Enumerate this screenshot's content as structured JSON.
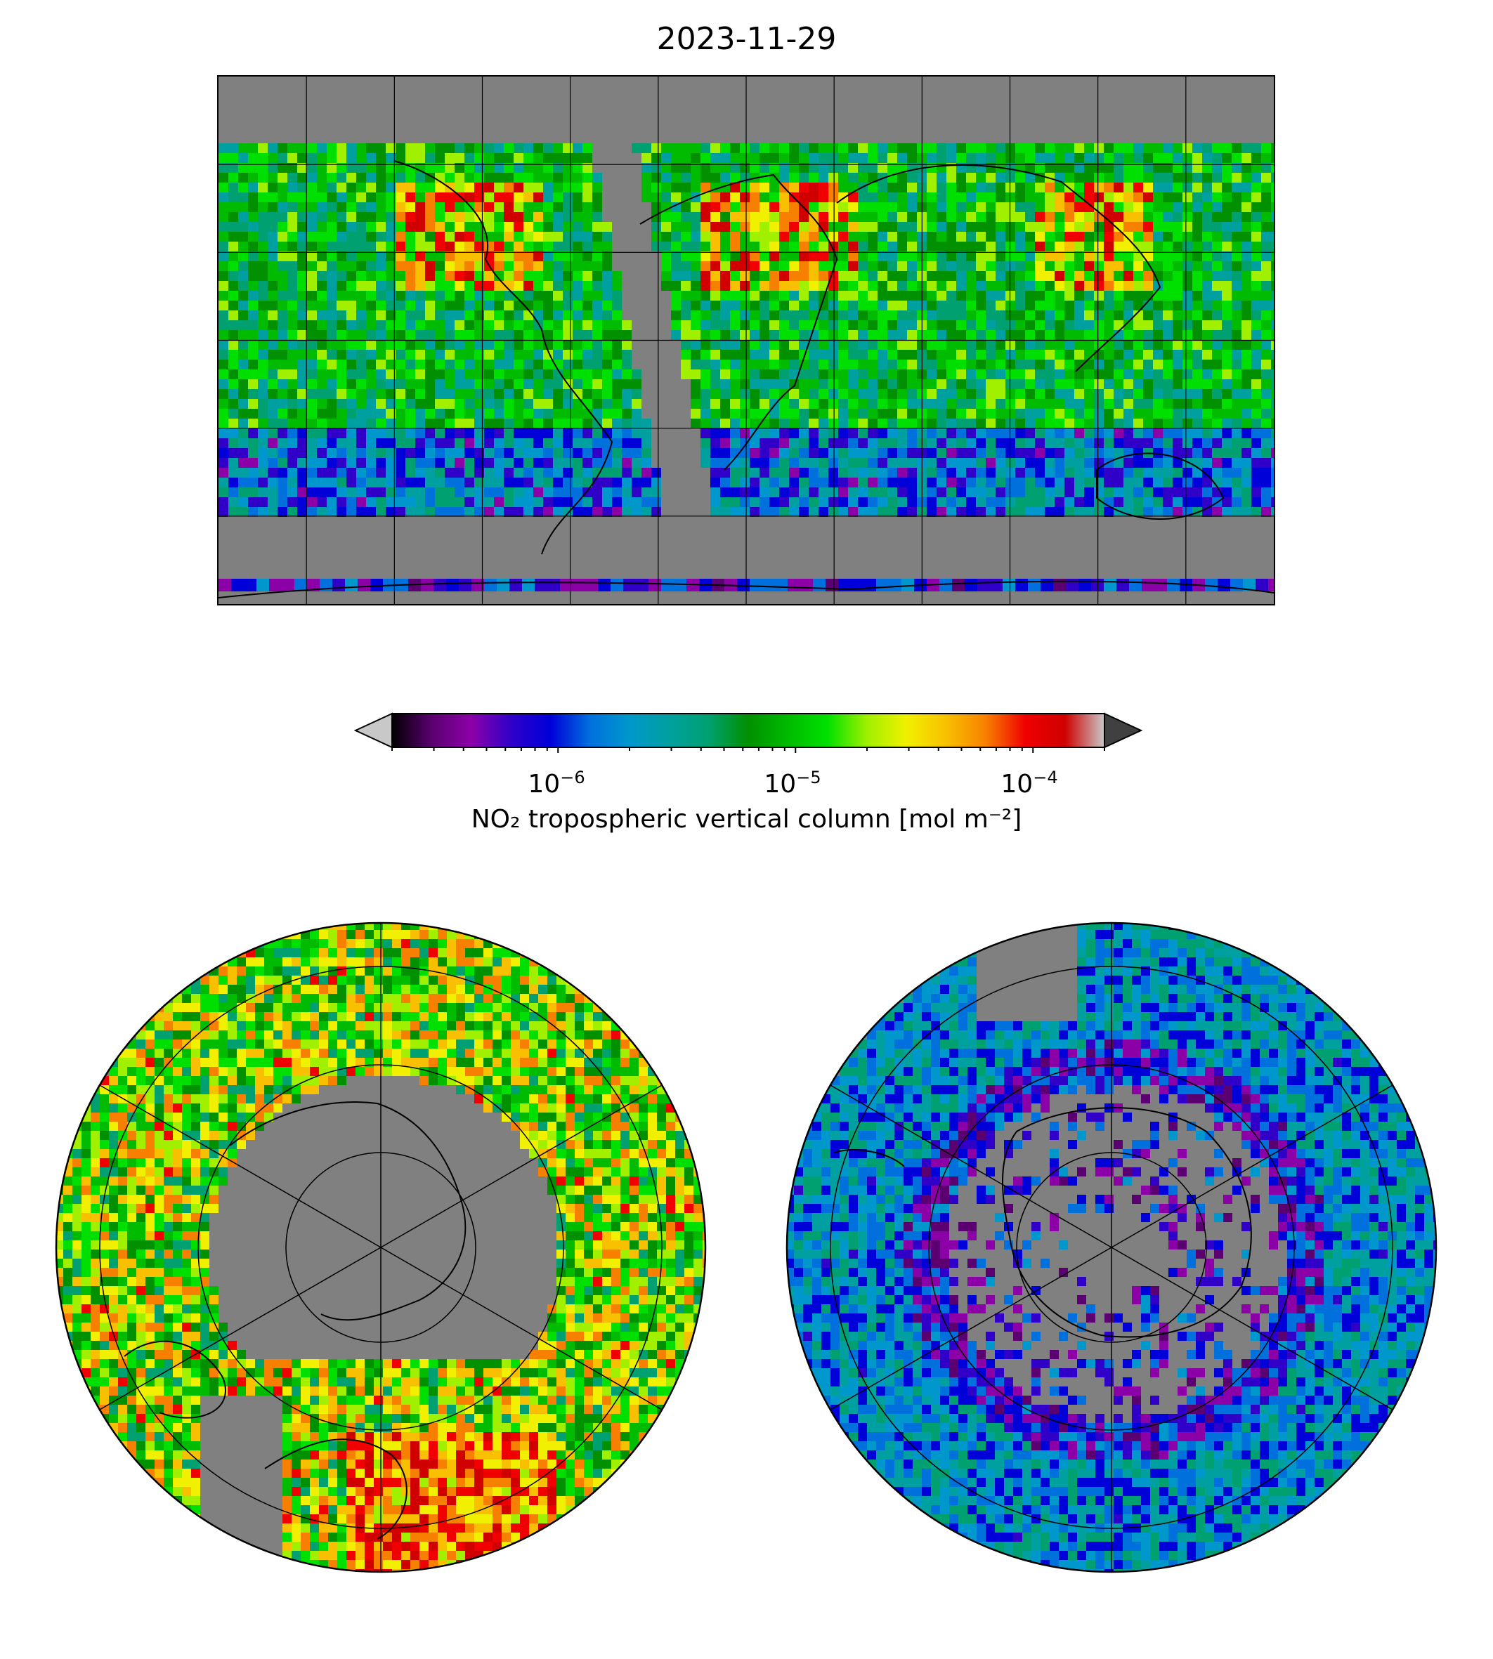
{
  "title": "2023-11-29",
  "colorbar": {
    "label": "NO₂ tropospheric vertical column [mol m⁻²]",
    "scale": "log",
    "range": [
      2e-07,
      0.0002
    ],
    "ticks": [
      {
        "value": 1e-06,
        "base": "10",
        "exp": "−6"
      },
      {
        "value": 1e-05,
        "base": "10",
        "exp": "−5"
      },
      {
        "value": 0.0001,
        "base": "10",
        "exp": "−4"
      }
    ],
    "under_color": "#c8c8c8",
    "over_color": "#404040",
    "colors": [
      "#000000",
      "#5a0070",
      "#8c00a8",
      "#3000c8",
      "#0000d8",
      "#0070dd",
      "#0098cc",
      "#00a0a0",
      "#00a070",
      "#009000",
      "#00bb00",
      "#00e000",
      "#a0f000",
      "#f0f000",
      "#f8c000",
      "#f88000",
      "#f00000",
      "#d00000",
      "#c8c8c8"
    ]
  },
  "maps": {
    "global": {
      "projection": "plate-carree",
      "no_data_color": "#808080"
    },
    "north_polar": {
      "projection": "north-polar-stereographic"
    },
    "south_polar": {
      "projection": "south-polar-stereographic"
    }
  }
}
